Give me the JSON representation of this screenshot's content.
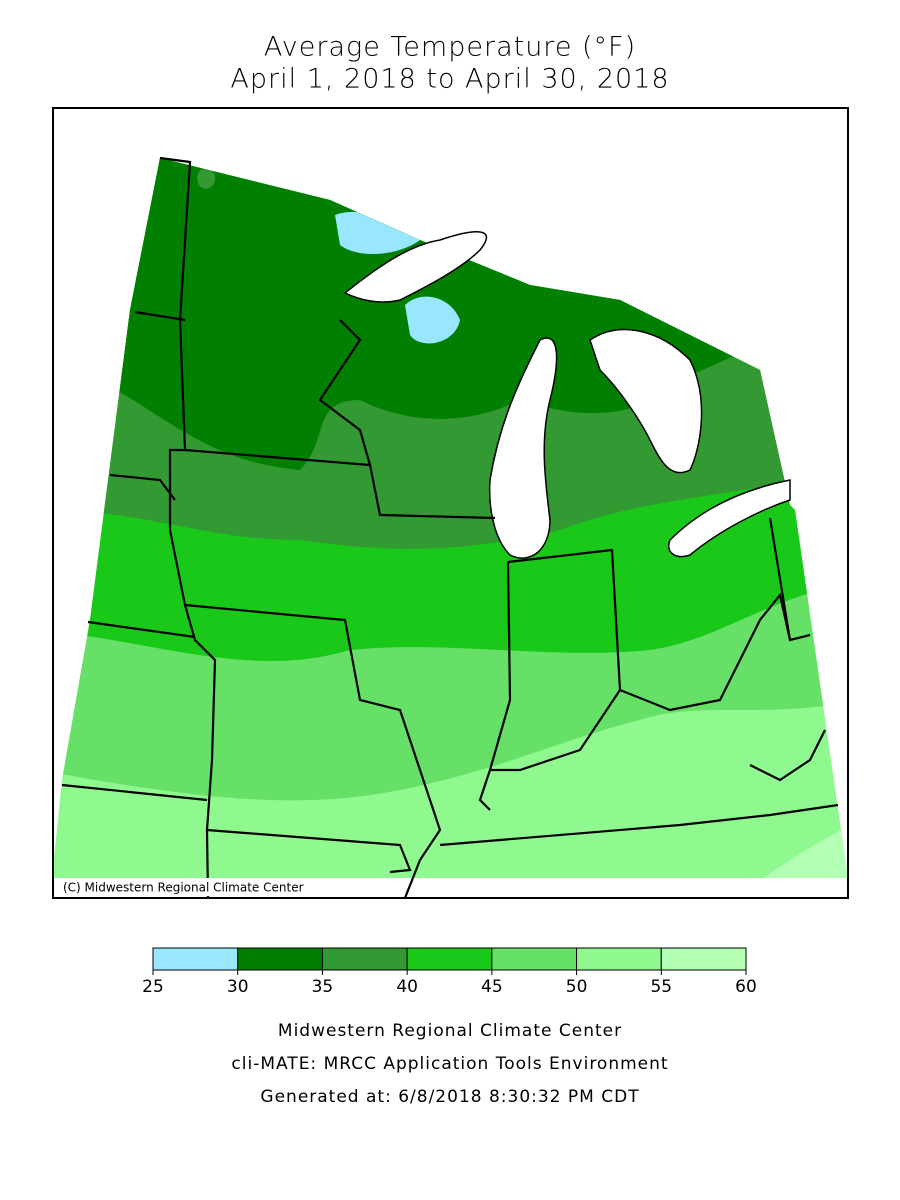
{
  "title": "Average Temperature (°F)",
  "subtitle": "April 1, 2018 to April 30, 2018",
  "copyright": "(C) Midwestern Regional Climate Center",
  "legend": {
    "bins": [
      25,
      30,
      35,
      40,
      45,
      50,
      55,
      60
    ],
    "colors": [
      "#99e6ff",
      "#007f00",
      "#339933",
      "#1ac81a",
      "#66e066",
      "#8ff88f",
      "#b3ffb3"
    ]
  },
  "footer": [
    "Midwestern Regional Climate Center",
    "cli-MATE: MRCC Application Tools Environment",
    "Generated at: 6/8/2018 8:30:32 PM CDT"
  ]
}
